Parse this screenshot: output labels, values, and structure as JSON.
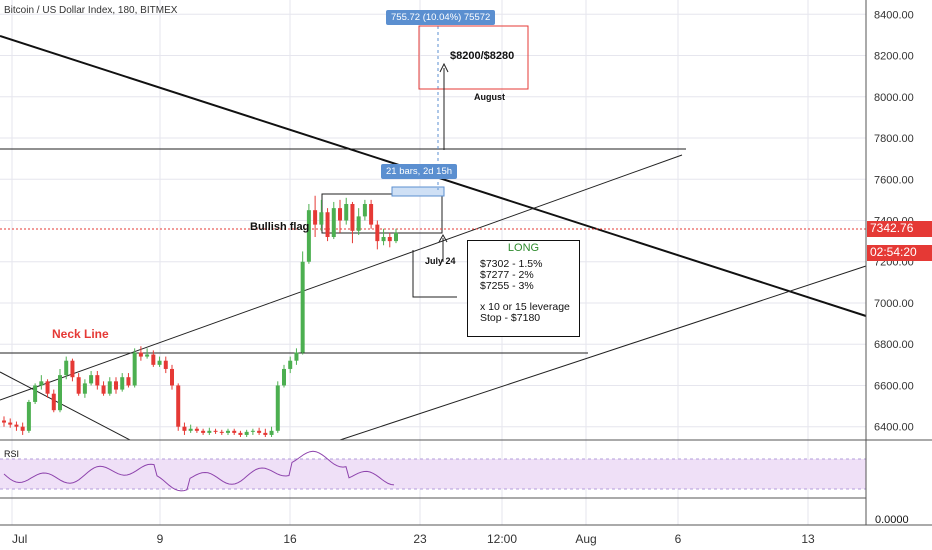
{
  "title": "Bitcoin / US Dollar Index, 180, BITMEX",
  "price_axis": {
    "ticks": [
      "8400.00",
      "8200.00",
      "8000.00",
      "7800.00",
      "7600.00",
      "7400.00",
      "7200.00",
      "7000.00",
      "6800.00",
      "6600.00",
      "6400.00"
    ],
    "current_price": "7342.76",
    "countdown": "02:54:20"
  },
  "time_axis": {
    "ticks": [
      "Jul",
      "9",
      "16",
      "23",
      "12:00",
      "Aug",
      "6",
      "13"
    ]
  },
  "rsi": {
    "label": "RSI",
    "tick": "0.0000"
  },
  "annotations": {
    "neck_line": "Neck Line",
    "bullish_flag": "Bullish flag",
    "target": "$8200/$8280",
    "target_month": "August",
    "july24": "July 24",
    "measure_top": "755.72 (10.04%) 75572",
    "measure_bars": "21 bars, 2d 15h"
  },
  "long_box": {
    "title": "LONG",
    "entries": [
      "$7302 - 1.5%",
      "$7277 - 2%",
      "$7255 - 3%"
    ],
    "leverage": "x 10 or 15 leverage",
    "stop": "Stop -  $7180"
  },
  "colors": {
    "up": "#4caf50",
    "down": "#e53935",
    "rsi_fill": "#efe0f7",
    "accent": "#5b8fd0"
  },
  "chart_data": {
    "type": "candlestick",
    "title": "Bitcoin / US Dollar Index, 180, BITMEX",
    "ylim": [
      6350,
      8450
    ],
    "candles": [
      [
        6430,
        6420,
        6450,
        6400
      ],
      [
        6420,
        6410,
        6440,
        6395
      ],
      [
        6410,
        6400,
        6425,
        6380
      ],
      [
        6400,
        6380,
        6420,
        6360
      ],
      [
        6380,
        6520,
        6530,
        6370
      ],
      [
        6520,
        6600,
        6610,
        6510
      ],
      [
        6600,
        6620,
        6650,
        6580
      ],
      [
        6620,
        6560,
        6630,
        6540
      ],
      [
        6560,
        6480,
        6580,
        6470
      ],
      [
        6480,
        6650,
        6680,
        6470
      ],
      [
        6650,
        6720,
        6740,
        6630
      ],
      [
        6720,
        6640,
        6730,
        6620
      ],
      [
        6640,
        6560,
        6660,
        6550
      ],
      [
        6560,
        6610,
        6630,
        6540
      ],
      [
        6610,
        6650,
        6670,
        6600
      ],
      [
        6650,
        6600,
        6670,
        6580
      ],
      [
        6600,
        6560,
        6620,
        6550
      ],
      [
        6560,
        6620,
        6640,
        6550
      ],
      [
        6620,
        6580,
        6640,
        6560
      ],
      [
        6580,
        6640,
        6660,
        6570
      ],
      [
        6640,
        6600,
        6660,
        6590
      ],
      [
        6600,
        6760,
        6780,
        6590
      ],
      [
        6760,
        6740,
        6790,
        6720
      ],
      [
        6740,
        6750,
        6780,
        6730
      ],
      [
        6750,
        6700,
        6770,
        6690
      ],
      [
        6700,
        6720,
        6740,
        6690
      ],
      [
        6720,
        6680,
        6740,
        6660
      ],
      [
        6680,
        6600,
        6700,
        6580
      ],
      [
        6600,
        6400,
        6610,
        6380
      ],
      [
        6400,
        6380,
        6420,
        6360
      ],
      [
        6380,
        6390,
        6410,
        6370
      ],
      [
        6390,
        6380,
        6400,
        6370
      ],
      [
        6380,
        6370,
        6390,
        6360
      ],
      [
        6370,
        6380,
        6395,
        6360
      ],
      [
        6380,
        6375,
        6390,
        6365
      ],
      [
        6375,
        6370,
        6385,
        6360
      ],
      [
        6370,
        6380,
        6390,
        6360
      ],
      [
        6380,
        6370,
        6390,
        6360
      ],
      [
        6370,
        6360,
        6380,
        6350
      ],
      [
        6360,
        6375,
        6385,
        6350
      ],
      [
        6375,
        6380,
        6390,
        6360
      ],
      [
        6380,
        6370,
        6395,
        6360
      ],
      [
        6370,
        6360,
        6390,
        6350
      ],
      [
        6360,
        6380,
        6400,
        6350
      ],
      [
        6380,
        6600,
        6620,
        6370
      ],
      [
        6600,
        6680,
        6700,
        6590
      ],
      [
        6680,
        6720,
        6740,
        6660
      ],
      [
        6720,
        6760,
        6780,
        6700
      ],
      [
        6760,
        7200,
        7250,
        6750
      ],
      [
        7200,
        7450,
        7480,
        7190
      ],
      [
        7450,
        7380,
        7520,
        7320
      ],
      [
        7380,
        7440,
        7500,
        7350
      ],
      [
        7440,
        7320,
        7460,
        7300
      ],
      [
        7320,
        7460,
        7490,
        7310
      ],
      [
        7460,
        7400,
        7500,
        7340
      ],
      [
        7400,
        7480,
        7510,
        7380
      ],
      [
        7480,
        7350,
        7490,
        7290
      ],
      [
        7350,
        7420,
        7460,
        7330
      ],
      [
        7420,
        7480,
        7500,
        7400
      ],
      [
        7480,
        7380,
        7500,
        7360
      ],
      [
        7380,
        7300,
        7400,
        7260
      ],
      [
        7300,
        7320,
        7360,
        7280
      ],
      [
        7320,
        7300,
        7340,
        7270
      ],
      [
        7300,
        7340,
        7360,
        7290
      ]
    ]
  }
}
